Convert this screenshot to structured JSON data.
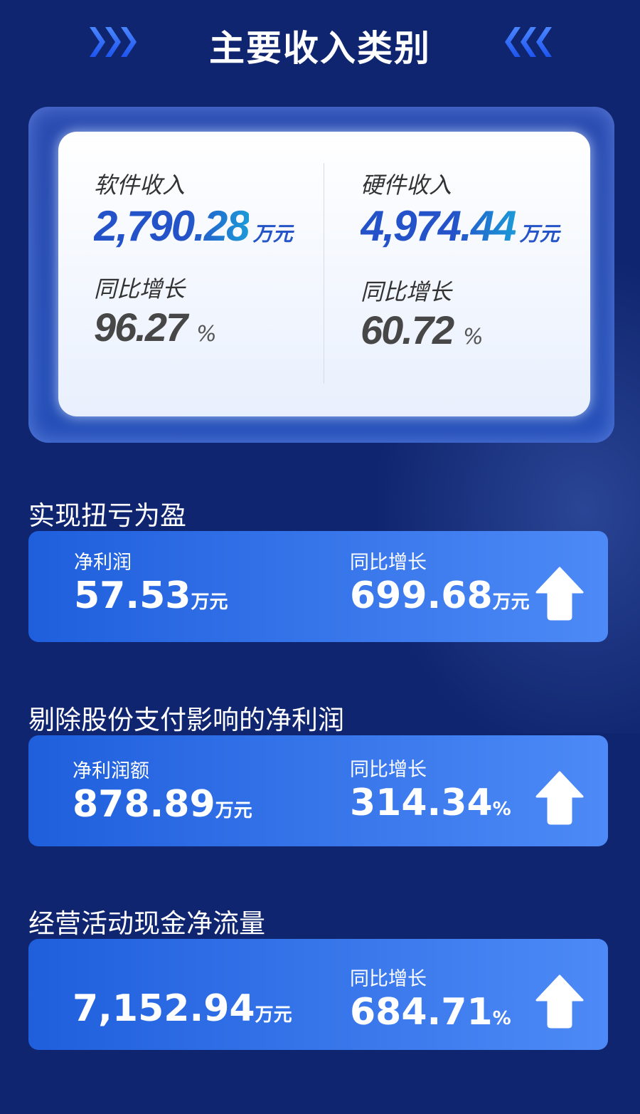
{
  "header": {
    "title": "主要收入类别",
    "left_icon": "chevrons-right-icon",
    "right_icon": "chevrons-left-icon",
    "accent": "#2f6bff"
  },
  "revenue": {
    "software": {
      "label": "软件收入",
      "value": "2,790.28",
      "unit": "万元",
      "growth_label": "同比增长",
      "growth": "96.27",
      "growth_unit": "%"
    },
    "hardware": {
      "label": "硬件收入",
      "value": "4,974.44",
      "unit": "万元",
      "growth_label": "同比增长",
      "growth": "60.72",
      "growth_unit": "%"
    }
  },
  "sections": [
    {
      "title": "实现扭亏为盈",
      "left_label": "净利润",
      "left_value": "57.53",
      "left_unit": "万元",
      "right_label": "同比增长",
      "right_value": "699.68",
      "right_unit": "万元",
      "icon": "arrow-up-icon"
    },
    {
      "title": "剔除股份支付影响的净利润",
      "left_label": "净利润额",
      "left_value": "878.89",
      "left_unit": "万元",
      "right_label": "同比增长",
      "right_value": "314.34",
      "right_unit": "%",
      "icon": "arrow-up-icon"
    },
    {
      "title": "经营活动现金净流量",
      "left_value": "7,152.94",
      "left_unit": "万元",
      "right_label": "同比增长",
      "right_value": "684.71",
      "right_unit": "%",
      "icon": "arrow-up-icon"
    }
  ]
}
